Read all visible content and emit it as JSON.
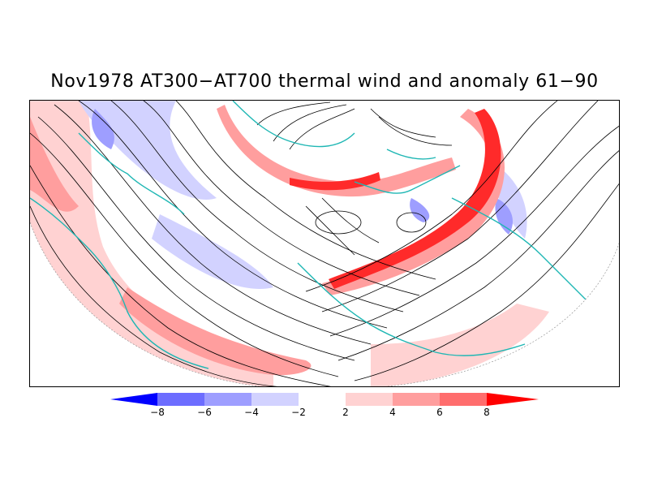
{
  "title": "Nov1978 AT300−AT700 thermal wind and anomaly 61−90",
  "colorbar": {
    "labels": [
      "−8",
      "−6",
      "−4",
      "−2",
      "2",
      "4",
      "6",
      "8"
    ],
    "colors": [
      "#0000ff",
      "#6d6dff",
      "#9e9eff",
      "#d2d2ff",
      "#ffffff",
      "#ffd2d2",
      "#ff9e9e",
      "#ff6d6d",
      "#ff0000"
    ]
  },
  "map": {
    "land_outline_color": "#1fb7b4",
    "streamline_color": "#000000",
    "anomaly_colors": {
      "strong_positive": "#ff2a2a",
      "positive": "#ff9e9e",
      "weak_positive": "#ffd2d2",
      "weak_negative": "#d2d2ff",
      "negative": "#9e9eff",
      "strong_negative": "#6d6dff"
    }
  }
}
